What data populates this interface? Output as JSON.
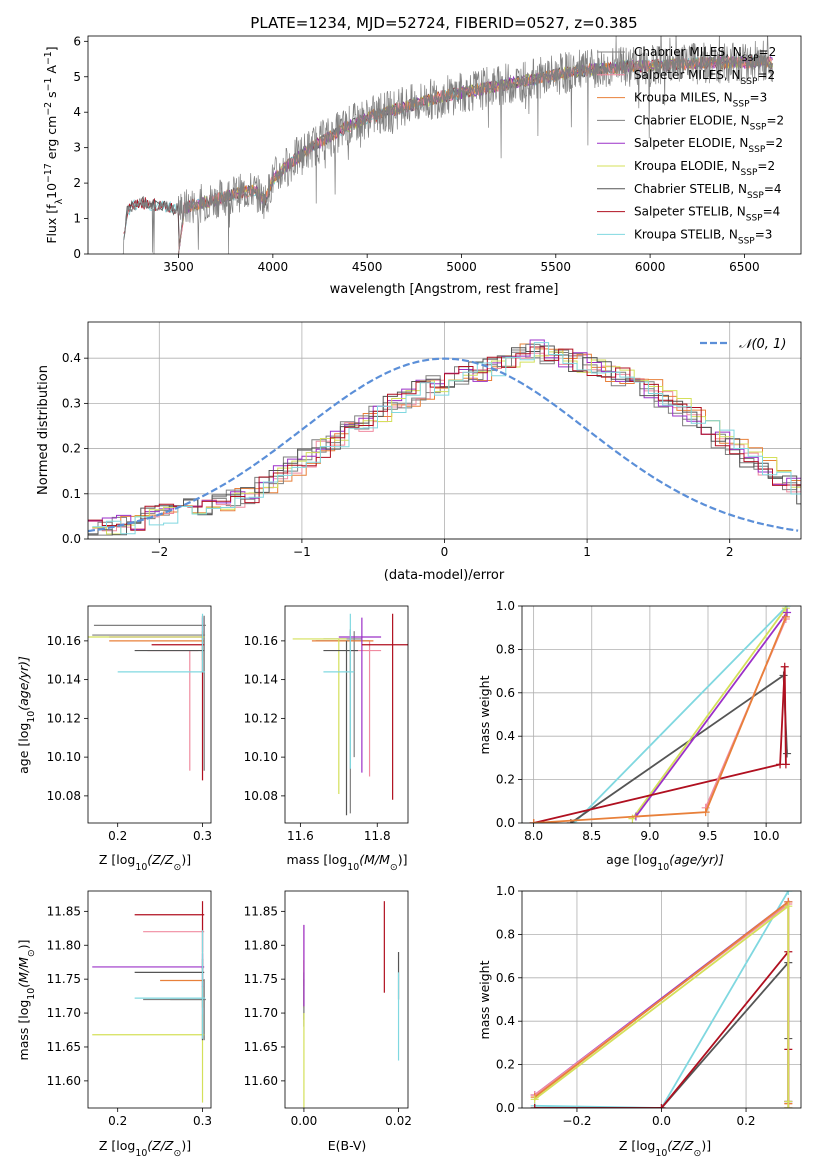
{
  "colors": {
    "cm": "#7f7f7f",
    "sm": "#f08ba0",
    "km": "#e8803a",
    "ce": "#7f7f7f",
    "se": "#9b30c8",
    "ke": "#d4e05a",
    "cs": "#555555",
    "ss": "#b01020",
    "ks": "#80d8e0",
    "normal": "#5b8fd8"
  },
  "legend_spectrum": [
    {
      "key": "cm",
      "label": "Chabrier MILES, N",
      "sub": "SSP",
      "suffix": "=2"
    },
    {
      "key": "sm",
      "label": "Salpeter MILES, N",
      "sub": "SSP",
      "suffix": "=2"
    },
    {
      "key": "km",
      "label": "Kroupa MILES, N",
      "sub": "SSP",
      "suffix": "=3"
    },
    {
      "key": "ce",
      "label": "Chabrier ELODIE, N",
      "sub": "SSP",
      "suffix": "=2"
    },
    {
      "key": "se",
      "label": "Salpeter ELODIE, N",
      "sub": "SSP",
      "suffix": "=2"
    },
    {
      "key": "ke",
      "label": "Kroupa ELODIE, N",
      "sub": "SSP",
      "suffix": "=2"
    },
    {
      "key": "cs",
      "label": "Chabrier STELIB, N",
      "sub": "SSP",
      "suffix": "=4"
    },
    {
      "key": "ss",
      "label": "Salpeter STELIB, N",
      "sub": "SSP",
      "suffix": "=4"
    },
    {
      "key": "ks",
      "label": "Kroupa STELIB, N",
      "sub": "SSP",
      "suffix": "=3"
    }
  ],
  "chart_data": [
    {
      "id": "spectrum",
      "type": "line",
      "title": "PLATE=1234, MJD=52724, FIBERID=0527, z=0.385",
      "xlabel": "wavelength [Angstrom, rest frame]",
      "ylabel": "Flux [f",
      "ylabel_parts": [
        "Flux [f",
        "λ",
        "10",
        "−17",
        " erg cm",
        "−2",
        " s",
        "−1",
        " A",
        "−1",
        "]"
      ],
      "xlim": [
        3020,
        6800
      ],
      "ylim": [
        0,
        6.15
      ],
      "xticks": [
        3500,
        4000,
        4500,
        5000,
        5500,
        6000,
        6500
      ],
      "yticks": [
        0,
        1,
        2,
        3,
        4,
        5,
        6
      ],
      "continuum": {
        "x": [
          3200,
          3230,
          3300,
          3400,
          3500,
          3600,
          3700,
          3800,
          3900,
          3960,
          4000,
          4100,
          4200,
          4300,
          4400,
          4500,
          4600,
          4700,
          4800,
          4900,
          5000,
          5100,
          5200,
          5300,
          5400,
          5500,
          5600,
          5700,
          5800,
          5900,
          6000,
          6100,
          6200,
          6300,
          6400,
          6500,
          6600,
          6650
        ],
        "y": [
          0.0,
          1.25,
          1.45,
          1.35,
          1.25,
          1.4,
          1.55,
          1.7,
          1.8,
          1.5,
          2.1,
          2.6,
          3.0,
          3.3,
          3.6,
          3.85,
          4.0,
          4.15,
          4.3,
          4.45,
          4.55,
          4.65,
          4.75,
          4.85,
          4.95,
          5.05,
          5.15,
          5.2,
          5.25,
          5.3,
          5.3,
          5.35,
          5.35,
          5.4,
          5.4,
          5.4,
          5.45,
          5.4
        ]
      }
    },
    {
      "id": "residuals",
      "type": "bar",
      "xlabel": "(data-model)/error",
      "ylabel": "Normed distribution",
      "xlim": [
        -2.5,
        2.5
      ],
      "ylim": [
        0,
        0.48
      ],
      "xticks": [
        -2,
        -1,
        0,
        1,
        2
      ],
      "yticks": [
        0.0,
        0.1,
        0.2,
        0.3,
        0.4
      ],
      "bin_width": 0.1,
      "bin_start": -2.5,
      "hist": [
        0.02,
        0.025,
        0.03,
        0.04,
        0.05,
        0.055,
        0.06,
        0.07,
        0.075,
        0.08,
        0.09,
        0.1,
        0.12,
        0.14,
        0.16,
        0.18,
        0.2,
        0.22,
        0.24,
        0.26,
        0.28,
        0.3,
        0.31,
        0.33,
        0.34,
        0.35,
        0.36,
        0.37,
        0.38,
        0.39,
        0.41,
        0.42,
        0.41,
        0.4,
        0.39,
        0.38,
        0.37,
        0.36,
        0.35,
        0.33,
        0.31,
        0.29,
        0.27,
        0.25,
        0.22,
        0.2,
        0.18,
        0.16,
        0.14,
        0.12,
        0.1,
        0.09,
        0.08,
        0.07,
        0.06,
        0.055,
        0.05,
        0.045,
        0.04,
        0.035
      ],
      "normal_legend": "𝒩(0, 1)"
    },
    {
      "id": "age-vs-Z",
      "type": "scatter",
      "xlabel": "Z [log",
      "xlabel_parts": [
        "Z [log",
        "10",
        "(Z/Z",
        "⊙",
        ")]"
      ],
      "ylabel_parts": [
        "age  [log",
        "10",
        "(age/yr)]"
      ],
      "xlim": [
        0.165,
        0.31
      ],
      "ylim": [
        10.066,
        10.178
      ],
      "xticks": [
        0.2,
        0.3
      ],
      "yticks": [
        10.08,
        10.1,
        10.12,
        10.14,
        10.16
      ],
      "points": [
        {
          "k": "cm",
          "x": 0.3,
          "y": 10.163,
          "xe": [
            0.13,
            0.003
          ],
          "ye": [
            0.02,
            0.0
          ]
        },
        {
          "k": "sm",
          "x": 0.285,
          "y": 10.155,
          "xe": [
            0.05,
            0.01
          ],
          "ye": [
            0.062,
            0.0
          ]
        },
        {
          "k": "km",
          "x": 0.3,
          "y": 10.16,
          "xe": [
            0.11,
            0.002
          ],
          "ye": [
            0.01,
            0.005
          ]
        },
        {
          "k": "ce",
          "x": 0.302,
          "y": 10.168,
          "xe": [
            0.13,
            0.002
          ],
          "ye": [
            0.075,
            0.005
          ]
        },
        {
          "k": "se",
          "x": 0.3,
          "y": 10.162,
          "xe": [
            0.11,
            0.001
          ],
          "ye": [
            0.0,
            0.01
          ]
        },
        {
          "k": "ke",
          "x": 0.3,
          "y": 10.162,
          "xe": [
            0.14,
            0.002
          ],
          "ye": [
            0.002,
            0.003
          ]
        },
        {
          "k": "cs",
          "x": 0.3,
          "y": 10.155,
          "xe": [
            0.08,
            0.002
          ],
          "ye": [
            0.0,
            0.0
          ]
        },
        {
          "k": "ss",
          "x": 0.3,
          "y": 10.158,
          "xe": [
            0.06,
            0.002
          ],
          "ye": [
            0.07,
            0.015
          ]
        },
        {
          "k": "ks",
          "x": 0.3,
          "y": 10.144,
          "xe": [
            0.1,
            0.003
          ],
          "ye": [
            0.0,
            0.03
          ]
        }
      ]
    },
    {
      "id": "age-vs-mass",
      "type": "scatter",
      "xlabel_parts": [
        "mass [log",
        "10",
        "(M/M",
        "⊙",
        ")]"
      ],
      "xlim": [
        11.56,
        11.88
      ],
      "ylim": [
        10.066,
        10.178
      ],
      "xticks": [
        11.6,
        11.8
      ],
      "yticks": [
        10.08,
        10.1,
        10.12,
        10.14,
        10.16
      ],
      "points": [
        {
          "k": "cm",
          "x": 11.74,
          "y": 10.16,
          "xe": [
            0.1,
            0.04
          ],
          "ye": [
            0.06,
            0.005
          ]
        },
        {
          "k": "sm",
          "x": 11.78,
          "y": 10.155,
          "xe": [
            0.05,
            0.03
          ],
          "ye": [
            0.065,
            0.005
          ]
        },
        {
          "k": "km",
          "x": 11.73,
          "y": 10.16,
          "xe": [
            0.1,
            0.06
          ],
          "ye": [
            0.02,
            0.005
          ]
        },
        {
          "k": "ce",
          "x": 11.73,
          "y": 10.161,
          "xe": [
            0.07,
            0.03
          ],
          "ye": [
            0.09,
            0.005
          ]
        },
        {
          "k": "se",
          "x": 11.76,
          "y": 10.162,
          "xe": [
            0.06,
            0.05
          ],
          "ye": [
            0.07,
            0.01
          ]
        },
        {
          "k": "ke",
          "x": 11.7,
          "y": 10.161,
          "xe": [
            0.12,
            0.02
          ],
          "ye": [
            0.08,
            0.0
          ]
        },
        {
          "k": "cs",
          "x": 11.72,
          "y": 10.155,
          "xe": [
            0.06,
            0.03
          ],
          "ye": [
            0.085,
            0.005
          ]
        },
        {
          "k": "ss",
          "x": 11.84,
          "y": 10.158,
          "xe": [
            0.08,
            0.04
          ],
          "ye": [
            0.08,
            0.016
          ]
        },
        {
          "k": "ks",
          "x": 11.73,
          "y": 10.144,
          "xe": [
            0.07,
            0.01
          ],
          "ye": [
            0.05,
            0.03
          ]
        }
      ]
    },
    {
      "id": "cumul-age",
      "type": "line",
      "xlabel_parts": [
        "age  [log",
        "10",
        "(age/yr)]"
      ],
      "ylabel": "mass weight",
      "xlim": [
        7.9,
        10.3
      ],
      "ylim": [
        0,
        1
      ],
      "xticks": [
        8.0,
        8.5,
        9.0,
        9.5,
        10.0
      ],
      "yticks": [
        0.0,
        0.2,
        0.4,
        0.6,
        0.8,
        1.0
      ],
      "series": [
        {
          "k": "ks",
          "x": [
            8.35,
            10.18
          ],
          "y": [
            0.0,
            1.0
          ]
        },
        {
          "k": "cs",
          "x": [
            8.32,
            10.15,
            10.18
          ],
          "y": [
            0.0,
            0.68,
            0.32
          ]
        },
        {
          "k": "ke",
          "x": [
            8.85,
            10.17
          ],
          "y": [
            0.02,
            0.99
          ]
        },
        {
          "k": "se",
          "x": [
            8.88,
            10.18
          ],
          "y": [
            0.03,
            0.97
          ]
        },
        {
          "k": "ss",
          "x": [
            8.0,
            10.12,
            10.16,
            10.17
          ],
          "y": [
            0.0,
            0.27,
            0.72,
            0.27
          ]
        },
        {
          "k": "sm",
          "x": [
            9.48,
            10.17
          ],
          "y": [
            0.07,
            0.94
          ]
        },
        {
          "k": "km",
          "x": [
            8.0,
            9.48,
            10.17
          ],
          "y": [
            0.0,
            0.05,
            0.95
          ]
        }
      ]
    },
    {
      "id": "mass-vs-Z",
      "type": "scatter",
      "xlabel_parts": [
        "Z [log",
        "10",
        "(Z/Z",
        "⊙",
        ")]"
      ],
      "ylabel_parts": [
        "mass [log",
        "10",
        "(M/M",
        "⊙",
        ")]"
      ],
      "xlim": [
        0.165,
        0.31
      ],
      "ylim": [
        11.56,
        11.88
      ],
      "xticks": [
        0.2,
        0.3
      ],
      "yticks": [
        11.6,
        11.65,
        11.7,
        11.75,
        11.8,
        11.85
      ],
      "points": [
        {
          "k": "cm",
          "x": 0.3,
          "y": 11.72,
          "xe": [
            0.07,
            0.002
          ],
          "ye": [
            0.06,
            0.02
          ]
        },
        {
          "k": "sm",
          "x": 0.3,
          "y": 11.82,
          "xe": [
            0.07,
            0.002
          ],
          "ye": [
            0.03,
            0.02
          ]
        },
        {
          "k": "km",
          "x": 0.3,
          "y": 11.748,
          "xe": [
            0.05,
            0.002
          ],
          "ye": [
            0.04,
            0.02
          ]
        },
        {
          "k": "ce",
          "x": 0.302,
          "y": 11.72,
          "xe": [
            0.04,
            0.002
          ],
          "ye": [
            0.06,
            0.03
          ]
        },
        {
          "k": "se",
          "x": 0.3,
          "y": 11.768,
          "xe": [
            0.13,
            0.002
          ],
          "ye": [
            0.03,
            0.02
          ]
        },
        {
          "k": "ke",
          "x": 0.3,
          "y": 11.668,
          "xe": [
            0.13,
            0.002
          ],
          "ye": [
            0.1,
            0.03
          ]
        },
        {
          "k": "cs",
          "x": 0.3,
          "y": 11.76,
          "xe": [
            0.08,
            0.002
          ],
          "ye": [
            0.1,
            0.02
          ]
        },
        {
          "k": "ss",
          "x": 0.3,
          "y": 11.845,
          "xe": [
            0.08,
            0.002
          ],
          "ye": [
            0.08,
            0.02
          ]
        },
        {
          "k": "ks",
          "x": 0.3,
          "y": 11.722,
          "xe": [
            0.08,
            0.003
          ],
          "ye": [
            0.06,
            0.1
          ]
        }
      ]
    },
    {
      "id": "mass-vs-EBV",
      "type": "scatter",
      "xlabel": "E(B-V)",
      "xlim": [
        -0.004,
        0.022
      ],
      "ylim": [
        11.56,
        11.88
      ],
      "xticks": [
        0.0,
        0.02
      ],
      "yticks": [
        11.6,
        11.65,
        11.7,
        11.75,
        11.8,
        11.85
      ],
      "points": [
        {
          "k": "cm",
          "x": 0.0,
          "y": 11.72,
          "xe": [
            0,
            0
          ],
          "ye": [
            0.03,
            0.03
          ]
        },
        {
          "k": "sm",
          "x": 0.0,
          "y": 11.8,
          "xe": [
            0,
            0
          ],
          "ye": [
            0.06,
            0.03
          ]
        },
        {
          "k": "km",
          "x": 0.0,
          "y": 11.748,
          "xe": [
            0,
            0
          ],
          "ye": [
            0.04,
            0.03
          ]
        },
        {
          "k": "ce",
          "x": 0.0,
          "y": 11.72,
          "xe": [
            0,
            0
          ],
          "ye": [
            0.04,
            0.04
          ]
        },
        {
          "k": "se",
          "x": 0.0,
          "y": 11.77,
          "xe": [
            0,
            0
          ],
          "ye": [
            0.06,
            0.06
          ]
        },
        {
          "k": "ke",
          "x": 0.0,
          "y": 11.66,
          "xe": [
            0,
            0
          ],
          "ye": [
            0.1,
            0.04
          ]
        },
        {
          "k": "cs",
          "x": 0.02,
          "y": 11.76,
          "xe": [
            0,
            0
          ],
          "ye": [
            0.04,
            0.03
          ]
        },
        {
          "k": "ss",
          "x": 0.017,
          "y": 11.8,
          "xe": [
            0,
            0
          ],
          "ye": [
            0.07,
            0.065
          ]
        },
        {
          "k": "ks",
          "x": 0.02,
          "y": 11.69,
          "xe": [
            0,
            0
          ],
          "ye": [
            0.06,
            0.07
          ]
        }
      ]
    },
    {
      "id": "cumul-Z",
      "type": "line",
      "xlabel_parts": [
        "Z [log",
        "10",
        "(Z/Z",
        "⊙",
        ")]"
      ],
      "ylabel": "mass weight",
      "xlim": [
        -0.33,
        0.33
      ],
      "ylim": [
        0,
        1
      ],
      "xticks": [
        -0.2,
        0.0,
        0.2
      ],
      "yticks": [
        0.0,
        0.2,
        0.4,
        0.6,
        0.8,
        1.0
      ],
      "series": [
        {
          "k": "ks",
          "x": [
            -0.3,
            0.0,
            0.3
          ],
          "y": [
            0.01,
            0.0,
            1.0
          ]
        },
        {
          "k": "cs",
          "x": [
            -0.3,
            0.0,
            0.3,
            0.3,
            0.3
          ],
          "y": [
            0.0,
            0.0,
            0.67,
            0.32,
            0.03
          ]
        },
        {
          "k": "ss",
          "x": [
            -0.3,
            0.0,
            0.3,
            0.3,
            0.3
          ],
          "y": [
            0.0,
            0.0,
            0.72,
            0.27,
            0.0
          ]
        },
        {
          "k": "se",
          "x": [
            -0.3,
            0.3,
            0.3
          ],
          "y": [
            0.06,
            0.95,
            0.03
          ]
        },
        {
          "k": "sm",
          "x": [
            -0.3,
            0.3,
            0.3
          ],
          "y": [
            0.06,
            0.94,
            0.02
          ]
        },
        {
          "k": "km",
          "x": [
            -0.3,
            0.3,
            0.3
          ],
          "y": [
            0.05,
            0.95,
            0.02
          ]
        },
        {
          "k": "ke",
          "x": [
            -0.3,
            0.3,
            0.3,
            0.3
          ],
          "y": [
            0.04,
            0.93,
            0.03,
            0.0
          ]
        }
      ]
    }
  ]
}
